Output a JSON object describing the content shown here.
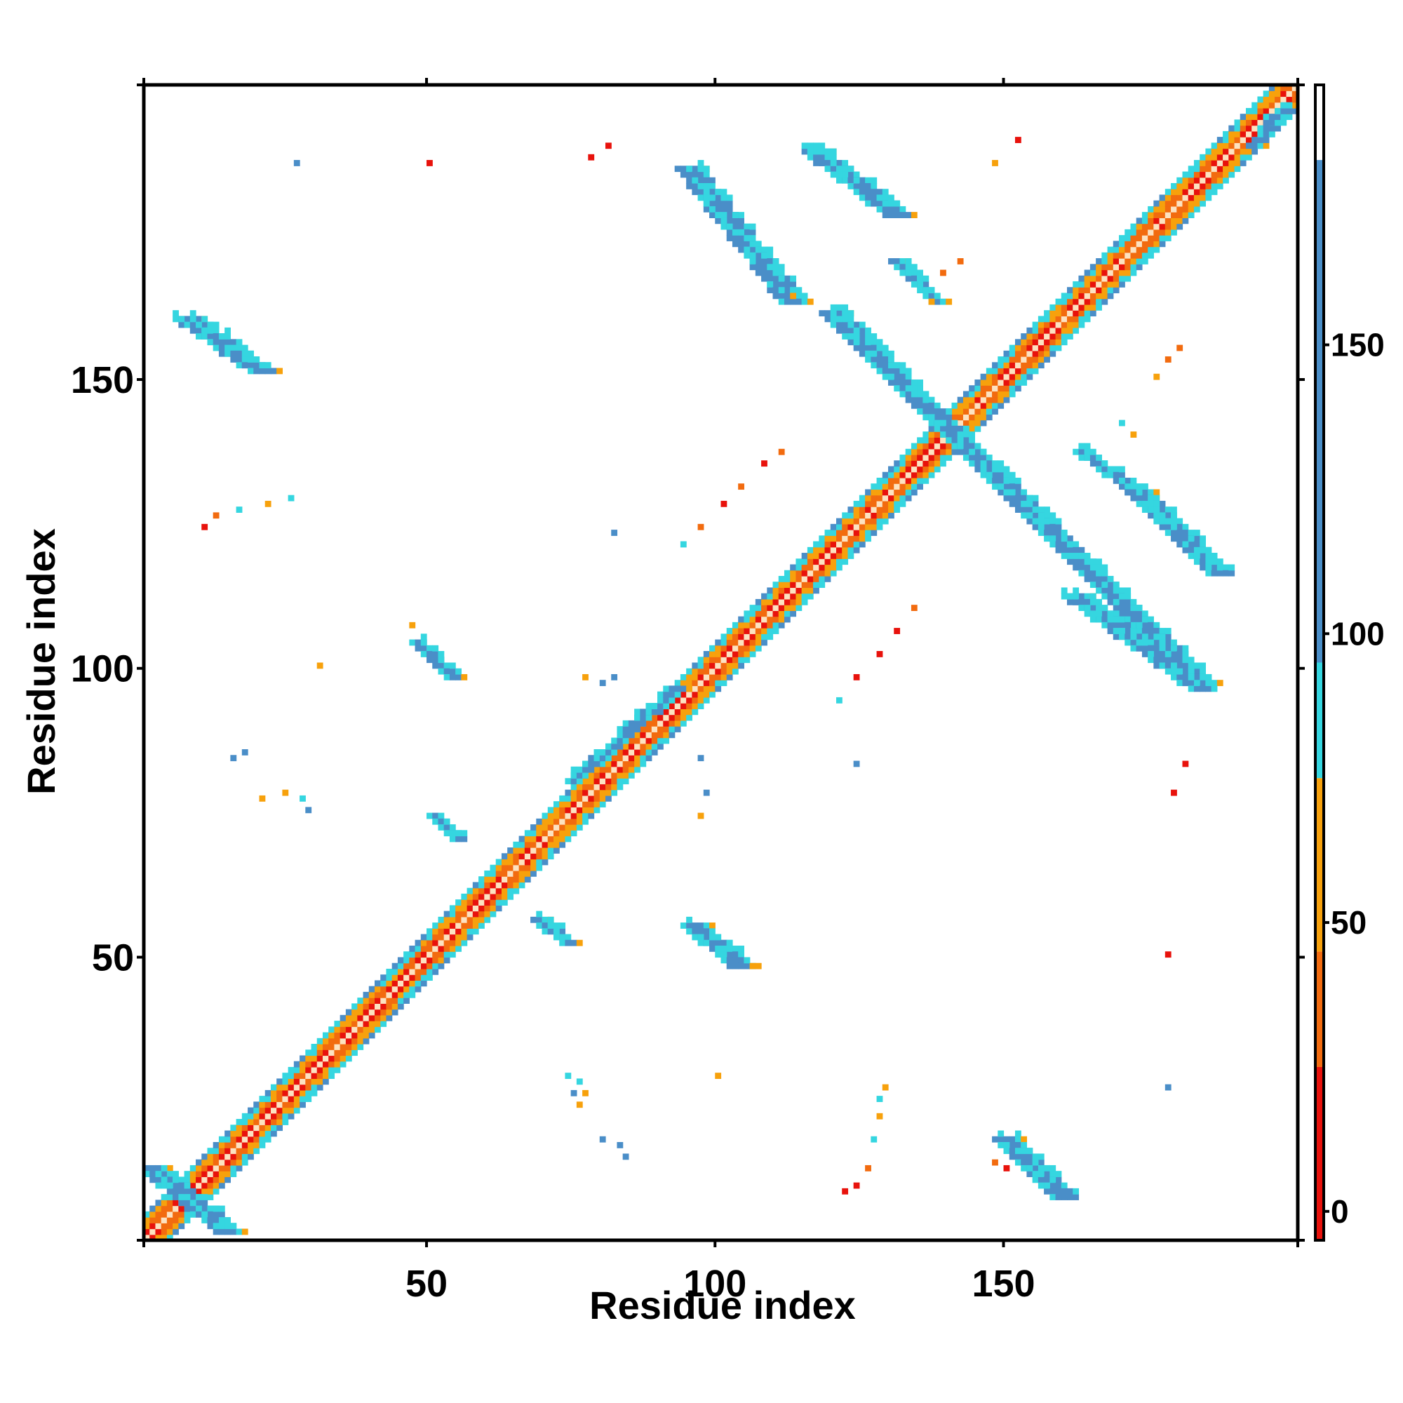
{
  "chart_data": {
    "type": "heatmap",
    "title": "",
    "xlabel": "Residue index",
    "ylabel": "Residue index",
    "xlim": [
      1,
      201
    ],
    "ylim": [
      1,
      201
    ],
    "x_ticks": [
      "50",
      "100",
      "150"
    ],
    "x_tick_values": [
      50,
      100,
      150
    ],
    "y_ticks": [
      "50",
      "100",
      "150"
    ],
    "y_tick_values": [
      50,
      100,
      150
    ],
    "grid": false,
    "colorbar": {
      "position": "right",
      "range": [
        -5,
        195
      ],
      "ticks": [
        "0",
        "50",
        "100",
        "150"
      ],
      "tick_values": [
        0,
        50,
        100,
        150
      ],
      "bands": [
        {
          "from": -5,
          "to": 25,
          "color": "#e8120c"
        },
        {
          "from": 25,
          "to": 45,
          "color": "#f26b0f"
        },
        {
          "from": 45,
          "to": 75,
          "color": "#f7a10c"
        },
        {
          "from": 75,
          "to": 95,
          "color": "#35d6e0"
        },
        {
          "from": 95,
          "to": 182,
          "color": "#4a8ec8"
        },
        {
          "from": 182,
          "to": 195,
          "color": "#ffffff"
        }
      ]
    },
    "palette": {
      "red": "#e8120c",
      "orange_red": "#f26b0f",
      "orange": "#f7a10c",
      "cyan": "#35d6e0",
      "blue": "#4a8ec8",
      "diagonal_light": "#fde2c0"
    },
    "diagonal_band": {
      "from": 1,
      "to": 201,
      "colors": [
        "red",
        "orange_red",
        "orange",
        "cyan",
        "blue"
      ]
    },
    "contact_segments": [
      {
        "x0": 95,
        "y0": 186,
        "x1": 113,
        "y1": 163,
        "color": "blue",
        "halo": "cyan",
        "width": 4
      },
      {
        "x0": 117,
        "y0": 189,
        "x1": 131,
        "y1": 178,
        "color": "blue",
        "halo": "cyan",
        "width": 4
      },
      {
        "x0": 131,
        "y0": 170,
        "x1": 138,
        "y1": 163,
        "color": "blue",
        "halo": "cyan",
        "width": 3
      },
      {
        "x0": 120,
        "y0": 161,
        "x1": 184,
        "y1": 97,
        "color": "blue",
        "halo": "cyan",
        "width": 4
      },
      {
        "x0": 163,
        "y0": 137,
        "x1": 174,
        "y1": 129,
        "color": "blue",
        "halo": "cyan",
        "width": 3
      },
      {
        "x0": 173,
        "y0": 130,
        "x1": 187,
        "y1": 116,
        "color": "blue",
        "halo": "cyan",
        "width": 4
      },
      {
        "x0": 162,
        "y0": 112,
        "x1": 184,
        "y1": 96,
        "color": "blue",
        "halo": "cyan",
        "width": 4
      },
      {
        "x0": 8,
        "y0": 160,
        "x1": 21,
        "y1": 151,
        "color": "blue",
        "halo": "cyan",
        "width": 4
      },
      {
        "x0": 48,
        "y0": 104,
        "x1": 54,
        "y1": 98,
        "color": "blue",
        "halo": "cyan",
        "width": 3
      },
      {
        "x0": 51,
        "y0": 74,
        "x1": 55,
        "y1": 70,
        "color": "blue",
        "halo": "cyan",
        "width": 2
      },
      {
        "x0": 69,
        "y0": 56,
        "x1": 74,
        "y1": 52,
        "color": "blue",
        "halo": "cyan",
        "width": 2
      },
      {
        "x0": 96,
        "y0": 55,
        "x1": 104,
        "y1": 48,
        "color": "blue",
        "halo": "cyan",
        "width": 4
      },
      {
        "x0": 150,
        "y0": 18,
        "x1": 160,
        "y1": 8,
        "color": "blue",
        "halo": "cyan",
        "width": 4
      },
      {
        "x0": 2,
        "y0": 13,
        "x1": 15,
        "y1": 2,
        "color": "blue",
        "halo": "cyan",
        "width": 4
      },
      {
        "x0": 75,
        "y0": 80,
        "x1": 93,
        "y1": 96,
        "color": "blue",
        "halo": "cyan",
        "width": 3
      },
      {
        "x0": 193,
        "y0": 190,
        "x1": 198,
        "y1": 196,
        "color": "blue",
        "halo": "cyan",
        "width": 3
      }
    ],
    "contact_points": [
      {
        "x": 27,
        "y": 187,
        "color": "blue"
      },
      {
        "x": 50,
        "y": 187,
        "color": "red"
      },
      {
        "x": 78,
        "y": 188,
        "color": "red"
      },
      {
        "x": 81,
        "y": 190,
        "color": "red"
      },
      {
        "x": 113,
        "y": 164,
        "color": "orange"
      },
      {
        "x": 137,
        "y": 163,
        "color": "orange"
      },
      {
        "x": 139,
        "y": 168,
        "color": "orange_red"
      },
      {
        "x": 142,
        "y": 170,
        "color": "orange_red"
      },
      {
        "x": 148,
        "y": 187,
        "color": "orange"
      },
      {
        "x": 152,
        "y": 191,
        "color": "red"
      },
      {
        "x": 176,
        "y": 150,
        "color": "orange"
      },
      {
        "x": 178,
        "y": 153,
        "color": "orange_red"
      },
      {
        "x": 180,
        "y": 155,
        "color": "orange_red"
      },
      {
        "x": 172,
        "y": 140,
        "color": "orange"
      },
      {
        "x": 170,
        "y": 142,
        "color": "cyan"
      },
      {
        "x": 11,
        "y": 124,
        "color": "red"
      },
      {
        "x": 13,
        "y": 126,
        "color": "orange_red"
      },
      {
        "x": 17,
        "y": 127,
        "color": "cyan"
      },
      {
        "x": 22,
        "y": 128,
        "color": "orange"
      },
      {
        "x": 26,
        "y": 129,
        "color": "cyan"
      },
      {
        "x": 31,
        "y": 100,
        "color": "orange"
      },
      {
        "x": 47,
        "y": 107,
        "color": "orange"
      },
      {
        "x": 101,
        "y": 128,
        "color": "red"
      },
      {
        "x": 104,
        "y": 131,
        "color": "orange_red"
      },
      {
        "x": 108,
        "y": 135,
        "color": "red"
      },
      {
        "x": 111,
        "y": 137,
        "color": "orange_red"
      },
      {
        "x": 94,
        "y": 121,
        "color": "cyan"
      },
      {
        "x": 97,
        "y": 124,
        "color": "orange_red"
      },
      {
        "x": 82,
        "y": 123,
        "color": "blue"
      },
      {
        "x": 121,
        "y": 94,
        "color": "cyan"
      },
      {
        "x": 124,
        "y": 98,
        "color": "red"
      },
      {
        "x": 128,
        "y": 102,
        "color": "red"
      },
      {
        "x": 131,
        "y": 106,
        "color": "red"
      },
      {
        "x": 134,
        "y": 110,
        "color": "orange_red"
      },
      {
        "x": 124,
        "y": 83,
        "color": "blue"
      },
      {
        "x": 18,
        "y": 85,
        "color": "blue"
      },
      {
        "x": 16,
        "y": 84,
        "color": "blue"
      },
      {
        "x": 21,
        "y": 77,
        "color": "orange"
      },
      {
        "x": 25,
        "y": 78,
        "color": "orange"
      },
      {
        "x": 28,
        "y": 77,
        "color": "cyan"
      },
      {
        "x": 29,
        "y": 75,
        "color": "blue"
      },
      {
        "x": 77,
        "y": 98,
        "color": "orange"
      },
      {
        "x": 80,
        "y": 97,
        "color": "blue"
      },
      {
        "x": 82,
        "y": 98,
        "color": "blue"
      },
      {
        "x": 97,
        "y": 84,
        "color": "blue"
      },
      {
        "x": 98,
        "y": 78,
        "color": "blue"
      },
      {
        "x": 97,
        "y": 74,
        "color": "orange"
      },
      {
        "x": 181,
        "y": 83,
        "color": "red"
      },
      {
        "x": 179,
        "y": 78,
        "color": "red"
      },
      {
        "x": 178,
        "y": 50,
        "color": "red"
      },
      {
        "x": 178,
        "y": 27,
        "color": "blue"
      },
      {
        "x": 100,
        "y": 29,
        "color": "orange"
      },
      {
        "x": 106,
        "y": 48,
        "color": "orange"
      },
      {
        "x": 74,
        "y": 29,
        "color": "cyan"
      },
      {
        "x": 76,
        "y": 28,
        "color": "cyan"
      },
      {
        "x": 75,
        "y": 26,
        "color": "blue"
      },
      {
        "x": 77,
        "y": 26,
        "color": "orange"
      },
      {
        "x": 76,
        "y": 24,
        "color": "orange"
      },
      {
        "x": 80,
        "y": 18,
        "color": "blue"
      },
      {
        "x": 83,
        "y": 17,
        "color": "blue"
      },
      {
        "x": 84,
        "y": 15,
        "color": "blue"
      },
      {
        "x": 122,
        "y": 9,
        "color": "red"
      },
      {
        "x": 124,
        "y": 10,
        "color": "red"
      },
      {
        "x": 126,
        "y": 13,
        "color": "orange_red"
      },
      {
        "x": 127,
        "y": 18,
        "color": "cyan"
      },
      {
        "x": 128,
        "y": 22,
        "color": "orange"
      },
      {
        "x": 128,
        "y": 25,
        "color": "cyan"
      },
      {
        "x": 129,
        "y": 27,
        "color": "orange"
      },
      {
        "x": 148,
        "y": 14,
        "color": "orange_red"
      },
      {
        "x": 150,
        "y": 13,
        "color": "red"
      }
    ]
  }
}
